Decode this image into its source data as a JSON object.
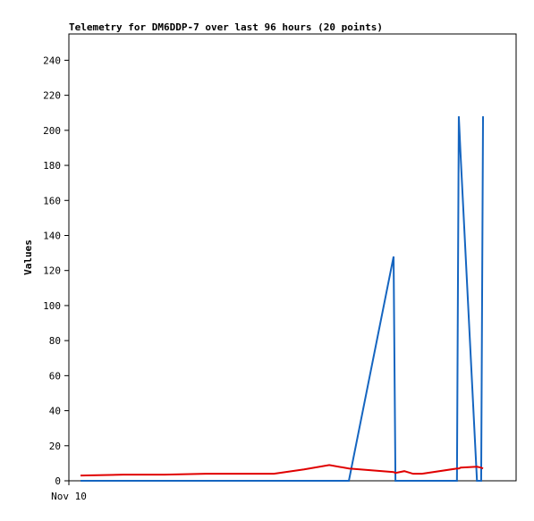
{
  "chart_data": {
    "type": "line",
    "title": "Telemetry for DM6DDP-7 over last 96 hours (20 points)",
    "y_label": "Values",
    "x": [
      2.5,
      11.7,
      20.5,
      29.4,
      36.7,
      44.0,
      50.5,
      55.9,
      60.1,
      69.7,
      70.1,
      72.0,
      73.9,
      75.8,
      83.3,
      83.7,
      84.1,
      87.6,
      88.5,
      88.9
    ],
    "series": [
      {
        "color": "#1565c0",
        "values": [
          0,
          0,
          0,
          0,
          0,
          0,
          0,
          0,
          0,
          128,
          0,
          0,
          0,
          0,
          0,
          208,
          185,
          0,
          0,
          208
        ]
      },
      {
        "color": "#e00000",
        "values": [
          3,
          3.5,
          3.5,
          4,
          4,
          4,
          6.5,
          9,
          7,
          5,
          4.5,
          5.5,
          4,
          4,
          7,
          7,
          7.5,
          8,
          7.5,
          7
        ]
      }
    ],
    "xlim": [
      0,
      96
    ],
    "xticks": [
      {
        "value": 0,
        "label": "Nov 10"
      }
    ],
    "ylim": [
      0,
      255
    ],
    "yticks": [
      0,
      20,
      40,
      60,
      80,
      100,
      120,
      140,
      160,
      180,
      200,
      220,
      240
    ]
  }
}
